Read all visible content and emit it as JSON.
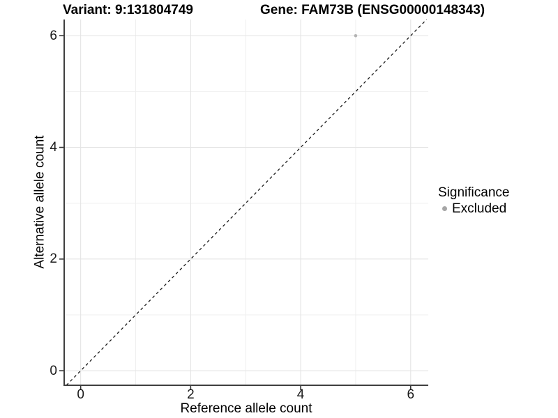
{
  "chart_data": {
    "type": "scatter",
    "title_left": "Variant: 9:131804749",
    "title_right": "Gene: FAM73B (ENSG00000148343)",
    "xlabel": "Reference allele count",
    "ylabel": "Alternative allele count",
    "xlim": [
      -0.3,
      6.32
    ],
    "ylim": [
      -0.26,
      6.29
    ],
    "x_ticks": [
      0,
      2,
      4,
      6
    ],
    "y_ticks": [
      0,
      2,
      4,
      6
    ],
    "x_minor_gridlines": [
      1,
      3,
      5
    ],
    "y_minor_gridlines": [
      1,
      3,
      5
    ],
    "grid": "on",
    "legend_position": "right",
    "points": [
      {
        "x": 5,
        "y": 6,
        "significance": "Excluded"
      }
    ],
    "identity_line": {
      "slope": 1,
      "intercept": 0,
      "style": "dashed"
    },
    "legend": {
      "title": "Significance",
      "entries": [
        {
          "label": "Excluded",
          "marker": "circle",
          "color": "#a6a6a6"
        }
      ]
    }
  },
  "style": {
    "background": "#ffffff",
    "point_color": "#b3b3b3",
    "grid_major_color": "#e4e4e4",
    "grid_minor_color": "#efefef",
    "axis_line_color": "#3f3f3f",
    "tick_mark_color": "#333333",
    "dashed_line_color": "#1a1a1a",
    "text_color": "#000000"
  }
}
